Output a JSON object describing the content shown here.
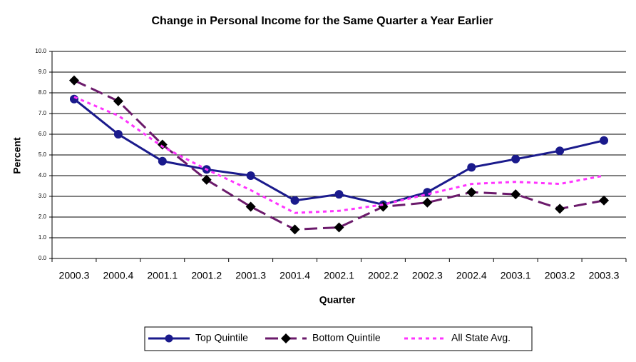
{
  "chart_data": {
    "type": "line",
    "title": "Change in Personal Income for the Same Quarter a Year Earlier",
    "x_label": "Quarter",
    "y_label": "Percent",
    "categories": [
      "2000.3",
      "2000.4",
      "2001.1",
      "2001.2",
      "2001.3",
      "2001.4",
      "2002.1",
      "2002.2",
      "2002.3",
      "2002.4",
      "2003.1",
      "2003.2",
      "2003.3"
    ],
    "series": [
      {
        "name": "Top Quintile",
        "color": "#1a1a8c",
        "line_style": "solid",
        "marker": "circle",
        "values": [
          7.7,
          6.0,
          4.7,
          4.3,
          4.0,
          2.8,
          3.1,
          2.6,
          3.2,
          4.4,
          4.8,
          5.2,
          5.7
        ]
      },
      {
        "name": "Bottom Quintile",
        "color": "#6b1a6b",
        "line_style": "dashed",
        "marker": "diamond",
        "values": [
          8.6,
          7.6,
          5.5,
          3.8,
          2.5,
          1.4,
          1.5,
          2.5,
          2.7,
          3.2,
          3.1,
          2.4,
          2.8
        ]
      },
      {
        "name": "All State Avg.",
        "color": "#ff33ff",
        "line_style": "dotted",
        "marker": "none",
        "values": [
          7.8,
          6.9,
          5.4,
          4.3,
          3.3,
          2.2,
          2.3,
          2.6,
          3.1,
          3.6,
          3.7,
          3.6,
          4.0
        ]
      }
    ],
    "ylim": [
      0,
      10
    ],
    "yticks": [
      {
        "value": 0,
        "label": "0.0"
      },
      {
        "value": 1,
        "label": "1.0"
      },
      {
        "value": 2,
        "label": "2.0"
      },
      {
        "value": 3,
        "label": "3.0"
      },
      {
        "value": 4,
        "label": "4.0"
      },
      {
        "value": 5,
        "label": "5.0"
      },
      {
        "value": 6,
        "label": "6.0"
      },
      {
        "value": 7,
        "label": "7.0"
      },
      {
        "value": 8,
        "label": "8.0"
      },
      {
        "value": 9,
        "label": "9.0"
      },
      {
        "value": 10,
        "label": "10.0"
      }
    ],
    "grid": true,
    "legend": "bottom"
  }
}
